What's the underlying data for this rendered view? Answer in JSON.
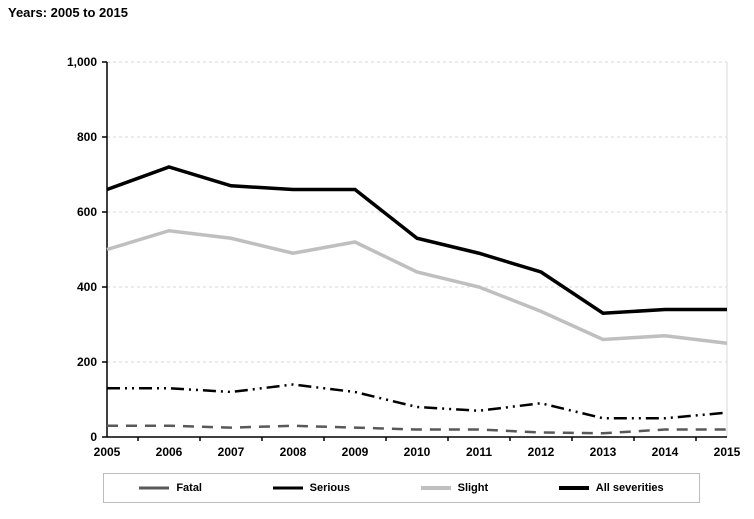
{
  "title": "Years: 2005 to 2015",
  "colors": {
    "grid": "#d9d9d9",
    "axis": "#000000",
    "legend_border": "#bdbdbd",
    "fatal": "#595959",
    "serious": "#000000",
    "slight": "#bfbfbf",
    "all_severities": "#000000"
  },
  "chart_data": {
    "type": "line",
    "title": "Years: 2005 to 2015",
    "xlabel": "",
    "ylabel": "",
    "ylim": [
      0,
      1000
    ],
    "grid": "horizontal-dashed",
    "legend_position": "bottom",
    "categories": [
      "2005",
      "2006",
      "2007",
      "2008",
      "2009",
      "2010",
      "2011",
      "2012",
      "2013",
      "2014",
      "2015"
    ],
    "y_ticks": [
      {
        "value": 0,
        "label": "0"
      },
      {
        "value": 200,
        "label": "200"
      },
      {
        "value": 400,
        "label": "400"
      },
      {
        "value": 600,
        "label": "600"
      },
      {
        "value": 800,
        "label": "800"
      },
      {
        "value": 1000,
        "label": "1,000"
      }
    ],
    "series": [
      {
        "name": "Fatal",
        "color": "#595959",
        "style": "dashed",
        "width": 2.5,
        "values": [
          30,
          30,
          25,
          30,
          25,
          20,
          20,
          12,
          10,
          20,
          20
        ]
      },
      {
        "name": "Serious",
        "color": "#000000",
        "style": "dash-dot-dot",
        "width": 2.5,
        "values": [
          130,
          130,
          120,
          140,
          120,
          80,
          70,
          90,
          50,
          50,
          65
        ]
      },
      {
        "name": "Slight",
        "color": "#bfbfbf",
        "style": "solid",
        "width": 3.5,
        "values": [
          500,
          550,
          530,
          490,
          520,
          440,
          400,
          335,
          260,
          270,
          250
        ]
      },
      {
        "name": "All severities",
        "color": "#000000",
        "style": "solid",
        "width": 3.5,
        "values": [
          660,
          720,
          670,
          660,
          660,
          530,
          490,
          440,
          330,
          340,
          340
        ]
      }
    ]
  }
}
